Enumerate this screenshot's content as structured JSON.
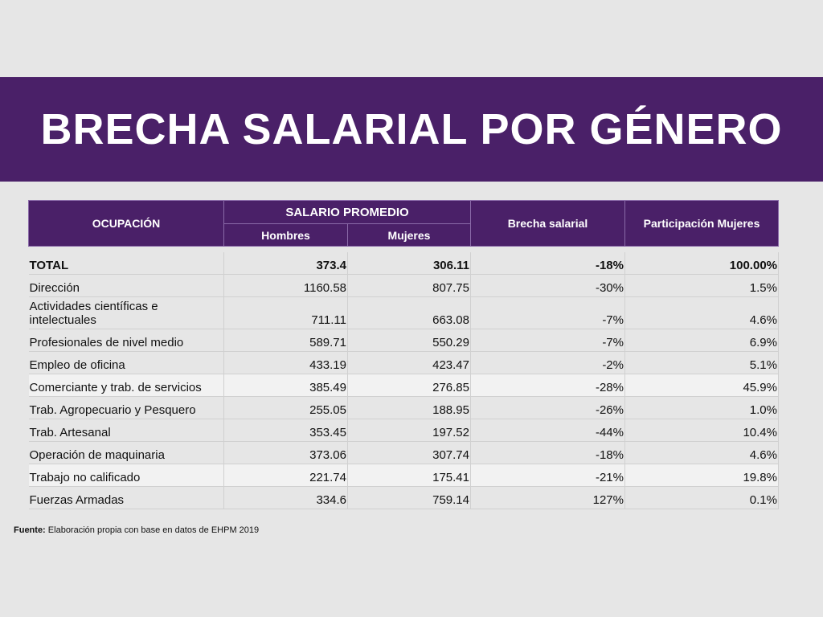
{
  "header": {
    "title": "BRECHA SALARIAL POR GÉNERO"
  },
  "table": {
    "columns": {
      "occupation": "OCUPACIÓN",
      "salary_group": "SALARIO PROMEDIO",
      "men": "Hombres",
      "women": "Mujeres",
      "gap": "Brecha salarial",
      "share": "Participación Mujeres"
    },
    "rows": [
      [
        "TOTAL",
        "373.4",
        "306.11",
        "-18%",
        "100.00%"
      ],
      [
        "Dirección",
        "1160.58",
        "807.75",
        "-30%",
        "1.5%"
      ],
      [
        "Actividades científicas e intelectuales",
        "711.11",
        "663.08",
        "-7%",
        "4.6%"
      ],
      [
        "Profesionales de nivel medio",
        "589.71",
        "550.29",
        "-7%",
        "6.9%"
      ],
      [
        "Empleo de oficina",
        "433.19",
        "423.47",
        "-2%",
        "5.1%"
      ],
      [
        "Comerciante y trab. de servicios",
        "385.49",
        "276.85",
        "-28%",
        "45.9%"
      ],
      [
        "Trab. Agropecuario y Pesquero",
        "255.05",
        "188.95",
        "-26%",
        "1.0%"
      ],
      [
        "Trab. Artesanal",
        "353.45",
        "197.52",
        "-44%",
        "10.4%"
      ],
      [
        "Operación de maquinaria",
        "373.06",
        "307.74",
        "-18%",
        "4.6%"
      ],
      [
        "Trabajo no calificado",
        "221.74",
        "175.41",
        "-21%",
        "19.8%"
      ],
      [
        "Fuerzas Armadas",
        "334.6",
        "759.14",
        "127%",
        "0.1%"
      ]
    ]
  },
  "footnote": {
    "label": "Fuente:",
    "text": "Elaboración propia con base en datos de EHPM 2019"
  }
}
